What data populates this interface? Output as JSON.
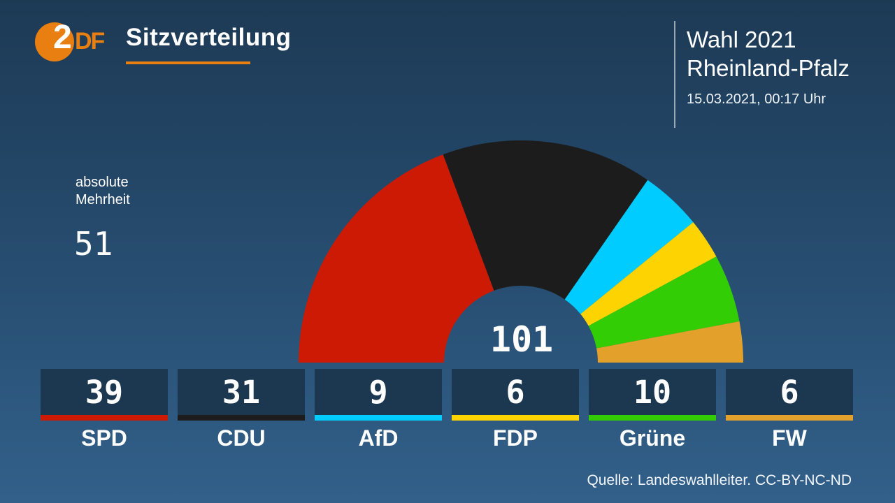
{
  "brand": {
    "logo_letter_2": "2",
    "logo_letters_df": "DF",
    "orange": "#e87f10"
  },
  "header": {
    "title": "Sitzverteilung"
  },
  "election_info": {
    "line1": "Wahl 2021",
    "line2": "Rheinland-Pfalz",
    "timestamp": "15.03.2021, 00:17 Uhr"
  },
  "majority": {
    "label_line1": "absolute",
    "label_line2": "Mehrheit",
    "value": "51"
  },
  "chart_data": {
    "type": "pie",
    "variant": "semicircle_donut",
    "title": "Sitzverteilung",
    "center_label": "101",
    "total_seats": 101,
    "absolute_majority_seats": 51,
    "categories": [
      "SPD",
      "CDU",
      "AfD",
      "FDP",
      "Grüne",
      "FW"
    ],
    "values": [
      39,
      31,
      9,
      6,
      10,
      6
    ],
    "colors": [
      "#cc1a04",
      "#1c1c1c",
      "#00ccff",
      "#fdd402",
      "#32cd04",
      "#e3a02b"
    ],
    "start_angle_deg": 180,
    "end_angle_deg": 0,
    "legend_position": "bottom"
  },
  "source": {
    "text": "Quelle: Landeswahlleiter. CC-BY-NC-ND"
  }
}
